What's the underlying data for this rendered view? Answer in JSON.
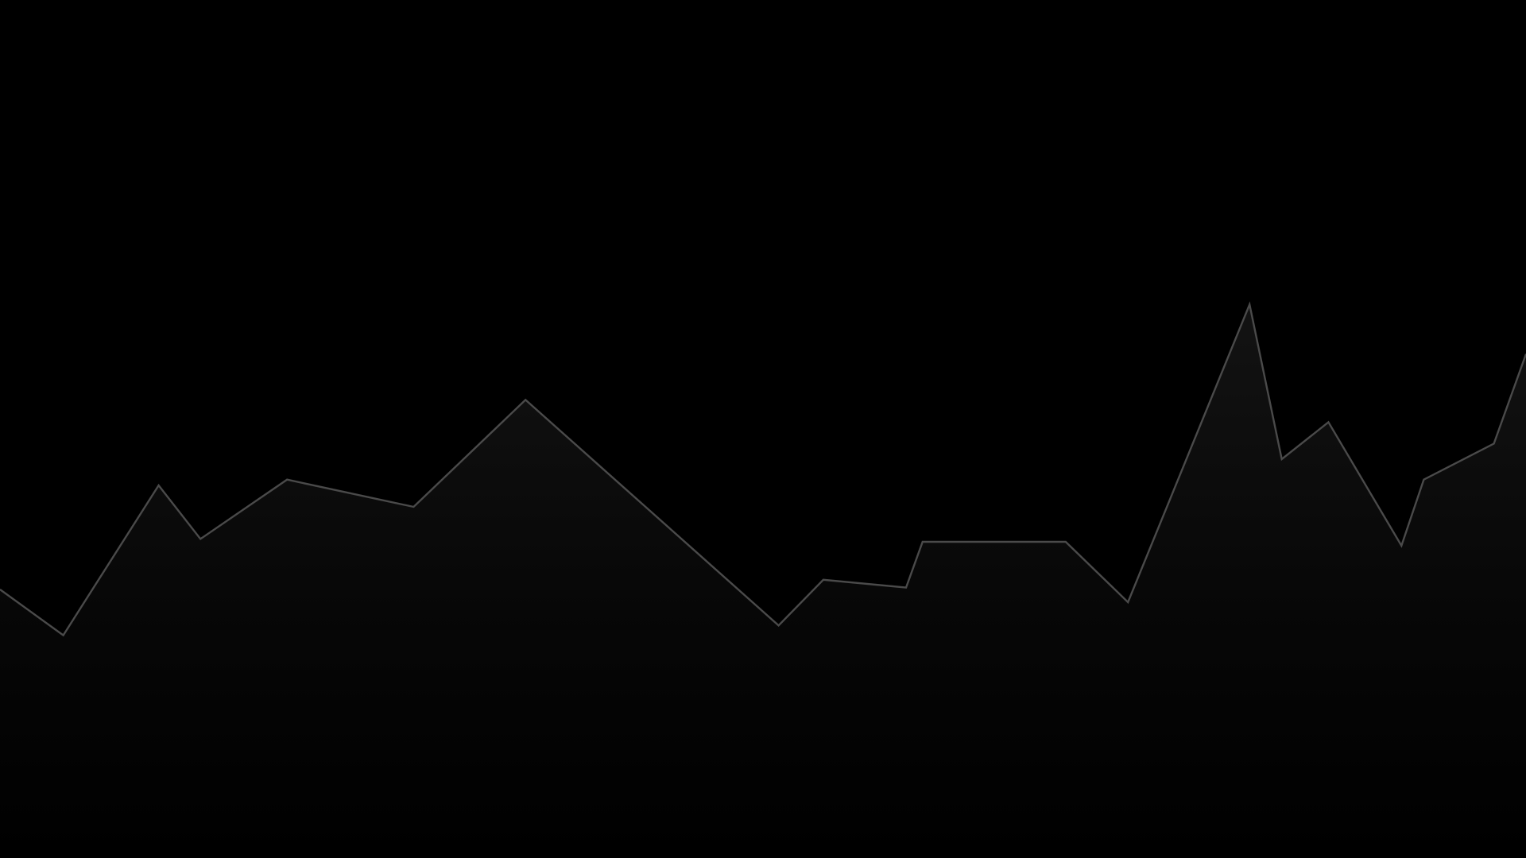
{
  "theme": {
    "background": "#000000",
    "line_color": "#4a4a4a",
    "fill_top_color": "#131313",
    "fill_bottom_color": "#000000"
  },
  "chart_data": {
    "type": "area",
    "title": "",
    "xlabel": "",
    "ylabel": "",
    "axes_visible": false,
    "grid": false,
    "legend": "none",
    "xlim": [
      0,
      1568
    ],
    "ylim": [
      0,
      882
    ],
    "series": [
      {
        "x": [
          0,
          65,
          163,
          206,
          295,
          425,
          540,
          800,
          846,
          931,
          948,
          1095,
          1159,
          1284,
          1317,
          1365,
          1440,
          1463,
          1535,
          1568
        ],
        "values": [
          276,
          229,
          383,
          328,
          389,
          361,
          471,
          239,
          286,
          278,
          325,
          325,
          263,
          569,
          410,
          448,
          321,
          389,
          426,
          518
        ]
      }
    ]
  }
}
